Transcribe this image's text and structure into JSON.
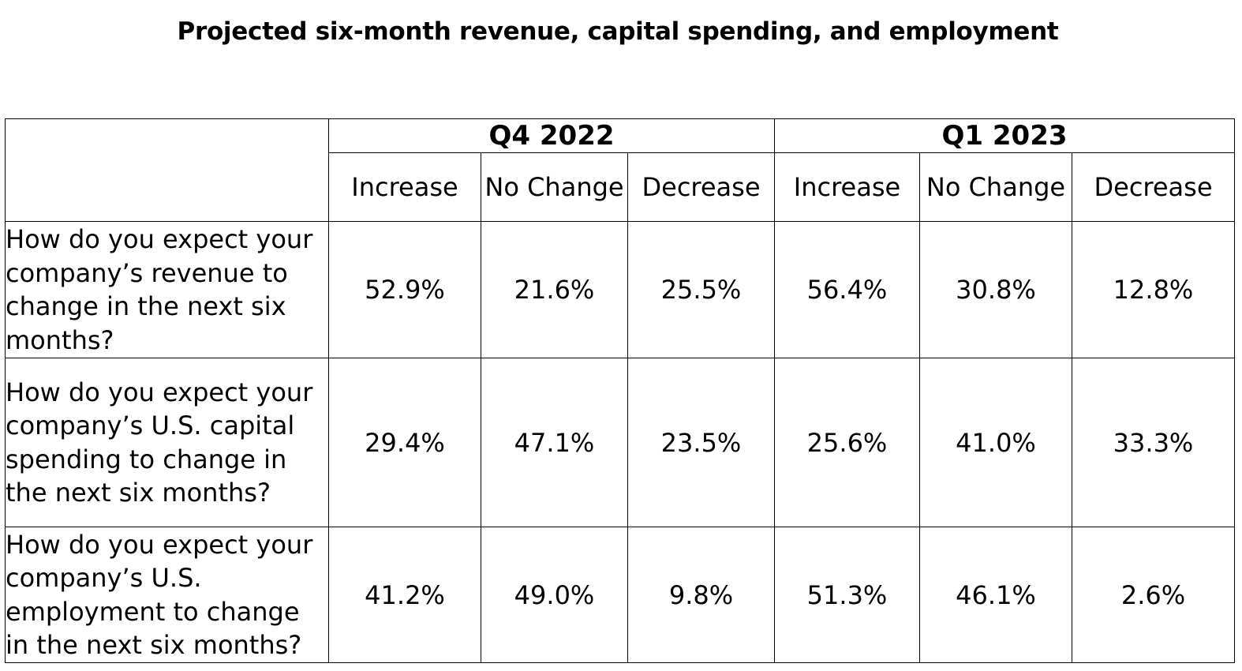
{
  "title": "Projected six-month revenue, capital spending, and employment",
  "periods": [
    "Q4 2022",
    "Q1 2023"
  ],
  "subheaders": [
    "Increase",
    "No Change",
    "Decrease",
    "Increase",
    "No Change",
    "Decrease"
  ],
  "rows": [
    {
      "question": "How do you expect your company’s revenue to change in the next six months?",
      "values": [
        "52.9%",
        "21.6%",
        "25.5%",
        "56.4%",
        "30.8%",
        "12.8%"
      ]
    },
    {
      "question": "How do you expect your company’s U.S. capital spending to change in the next six months?",
      "values": [
        "29.4%",
        "47.1%",
        "23.5%",
        "25.6%",
        "41.0%",
        "33.3%"
      ]
    },
    {
      "question": "How do you expect your company’s U.S. employment to change in the next six months?",
      "values": [
        "41.2%",
        "49.0%",
        "9.8%",
        "51.3%",
        "46.1%",
        "2.6%"
      ]
    }
  ]
}
